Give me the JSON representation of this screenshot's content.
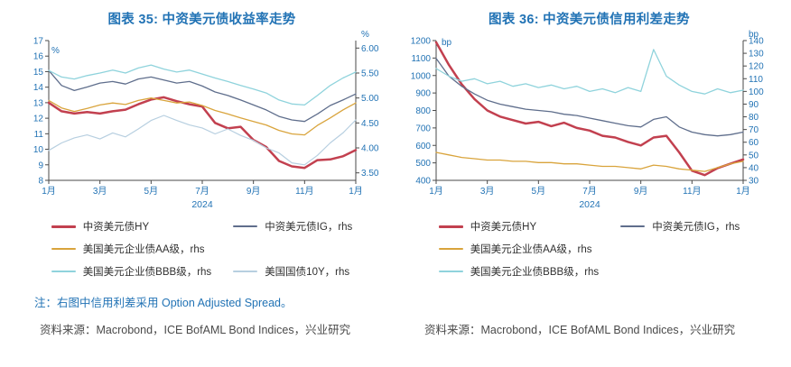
{
  "page": {
    "colors": {
      "accent": "#2273b5",
      "axis": "#4a4a4a",
      "legend_text": "#303030",
      "source_text": "#4a4a4a"
    },
    "note": "注：右图中信用利差采用 Option Adjusted Spread。",
    "source_left": "资料来源：Macrobond，ICE BofAML Bond Indices，兴业研究",
    "source_right": "资料来源：Macrobond，ICE BofAML Bond Indices，兴业研究"
  },
  "chart_data": [
    {
      "type": "line",
      "title": "图表 35: 中资美元债收益率走势",
      "x_year": "2024",
      "x_range": [
        0,
        12
      ],
      "x_ticks": [
        {
          "v": 0,
          "label": "1月"
        },
        {
          "v": 2,
          "label": "3月"
        },
        {
          "v": 4,
          "label": "5月"
        },
        {
          "v": 6,
          "label": "7月"
        },
        {
          "v": 8,
          "label": "9月"
        },
        {
          "v": 10,
          "label": "11月"
        },
        {
          "v": 12,
          "label": "1月"
        }
      ],
      "left_axis": {
        "unit": "%",
        "unit_pos": [
          3,
          14
        ],
        "range": [
          8,
          17
        ],
        "tick_values": [
          8,
          9,
          10,
          11,
          12,
          13,
          14,
          15,
          16,
          17
        ],
        "tick_labels": [
          "8",
          "9",
          "10",
          "11",
          "12",
          "13",
          "14",
          "15",
          "16",
          "17"
        ]
      },
      "right_axis": {
        "unit": "%",
        "unit_pos": [
          6,
          -4
        ],
        "range": [
          3.35,
          6.15
        ],
        "tick_values": [
          3.5,
          4.0,
          4.5,
          5.0,
          5.5,
          6.0
        ],
        "tick_labels": [
          "3.50",
          "4.00",
          "4.50",
          "5.00",
          "5.50",
          "6.00"
        ]
      },
      "x": [
        0,
        0.5,
        1,
        1.5,
        2,
        2.5,
        3,
        3.5,
        4,
        4.5,
        5,
        5.5,
        6,
        6.5,
        7,
        7.5,
        8,
        8.5,
        9,
        9.5,
        10,
        10.5,
        11,
        11.5,
        12
      ],
      "series": [
        {
          "id": "hy",
          "name": "中资美元债HY",
          "axis": "left",
          "color": "#c2404f",
          "width": 2.5,
          "values": [
            13.0,
            12.45,
            12.3,
            12.4,
            12.3,
            12.45,
            12.55,
            12.9,
            13.2,
            13.35,
            13.1,
            12.9,
            12.75,
            11.7,
            11.35,
            11.45,
            10.6,
            10.15,
            9.25,
            8.9,
            8.8,
            9.3,
            9.35,
            9.55,
            9.95
          ]
        },
        {
          "id": "ig",
          "name": "中资美元债IG，rhs",
          "axis": "right",
          "color": "#5f6e8c",
          "width": 1.3,
          "values": [
            5.55,
            5.25,
            5.15,
            5.22,
            5.3,
            5.33,
            5.28,
            5.38,
            5.42,
            5.36,
            5.3,
            5.33,
            5.24,
            5.12,
            5.05,
            4.96,
            4.86,
            4.76,
            4.63,
            4.56,
            4.53,
            4.68,
            4.85,
            4.96,
            5.08
          ]
        },
        {
          "id": "aa",
          "name": "美国美元企业债AA级，rhs",
          "axis": "right",
          "color": "#d9a43c",
          "width": 1.3,
          "values": [
            4.95,
            4.8,
            4.73,
            4.79,
            4.86,
            4.9,
            4.87,
            4.95,
            5.0,
            4.95,
            4.9,
            4.92,
            4.85,
            4.75,
            4.68,
            4.6,
            4.53,
            4.46,
            4.35,
            4.28,
            4.26,
            4.45,
            4.6,
            4.76,
            4.9
          ]
        },
        {
          "id": "bbb",
          "name": "美国美元企业债BBB级，rhs",
          "axis": "right",
          "color": "#8fd3dc",
          "width": 1.3,
          "values": [
            5.55,
            5.42,
            5.38,
            5.45,
            5.5,
            5.56,
            5.5,
            5.6,
            5.66,
            5.58,
            5.52,
            5.56,
            5.48,
            5.4,
            5.33,
            5.25,
            5.18,
            5.1,
            4.96,
            4.88,
            4.86,
            5.05,
            5.25,
            5.4,
            5.52
          ]
        },
        {
          "id": "ust10y",
          "name": "美国国债10Y，rhs",
          "axis": "right",
          "color": "#b7cfe0",
          "width": 1.2,
          "values": [
            3.95,
            4.1,
            4.2,
            4.26,
            4.18,
            4.3,
            4.22,
            4.38,
            4.55,
            4.65,
            4.55,
            4.46,
            4.4,
            4.28,
            4.38,
            4.25,
            4.15,
            4.0,
            3.9,
            3.7,
            3.66,
            3.85,
            4.1,
            4.3,
            4.56
          ]
        }
      ],
      "legend_rows": [
        [
          0,
          1
        ],
        [
          2
        ],
        [
          3,
          4
        ]
      ]
    },
    {
      "type": "line",
      "title": "图表 36: 中资美元债信用利差走势",
      "x_year": "2024",
      "x_range": [
        0,
        12
      ],
      "x_ticks": [
        {
          "v": 0,
          "label": "1月"
        },
        {
          "v": 2,
          "label": "3月"
        },
        {
          "v": 4,
          "label": "5月"
        },
        {
          "v": 6,
          "label": "7月"
        },
        {
          "v": 8,
          "label": "9月"
        },
        {
          "v": 10,
          "label": "11月"
        },
        {
          "v": 12,
          "label": "1月"
        }
      ],
      "left_axis": {
        "unit": "bp",
        "unit_pos": [
          6,
          5
        ],
        "range": [
          400,
          1200
        ],
        "tick_values": [
          400,
          500,
          600,
          700,
          800,
          900,
          1000,
          1100,
          1200
        ],
        "tick_labels": [
          "400",
          "500",
          "600",
          "700",
          "800",
          "900",
          "1000",
          "1100",
          "1200"
        ]
      },
      "right_axis": {
        "unit": "bp",
        "unit_pos": [
          6,
          -4
        ],
        "range": [
          30,
          140
        ],
        "tick_values": [
          30,
          40,
          50,
          60,
          70,
          80,
          90,
          100,
          110,
          120,
          130,
          140
        ],
        "tick_labels": [
          "30",
          "40",
          "50",
          "60",
          "70",
          "80",
          "90",
          "100",
          "110",
          "120",
          "130",
          "140"
        ]
      },
      "x": [
        0,
        0.5,
        1,
        1.5,
        2,
        2.5,
        3,
        3.5,
        4,
        4.5,
        5,
        5.5,
        6,
        6.5,
        7,
        7.5,
        8,
        8.5,
        9,
        9.5,
        10,
        10.5,
        11,
        11.5,
        12
      ],
      "series": [
        {
          "id": "hy",
          "name": "中资美元债HY",
          "axis": "left",
          "color": "#c2404f",
          "width": 2.5,
          "values": [
            1190,
            1060,
            950,
            865,
            800,
            765,
            745,
            725,
            735,
            710,
            730,
            700,
            685,
            655,
            645,
            620,
            600,
            645,
            655,
            560,
            455,
            430,
            470,
            495,
            520
          ]
        },
        {
          "id": "ig",
          "name": "中资美元债IG，rhs",
          "axis": "right",
          "color": "#5f6e8c",
          "width": 1.3,
          "values": [
            126,
            112,
            104,
            98,
            93,
            90,
            88,
            86,
            85,
            84,
            82,
            81,
            79,
            77,
            75,
            73,
            72,
            78,
            80,
            72,
            68,
            66,
            65,
            66,
            68
          ]
        },
        {
          "id": "aa",
          "name": "美国美元企业债AA级，rhs",
          "axis": "right",
          "color": "#d9a43c",
          "width": 1.3,
          "values": [
            52,
            50,
            48,
            47,
            46,
            46,
            45,
            45,
            44,
            44,
            43,
            43,
            42,
            41,
            41,
            40,
            39,
            42,
            41,
            39,
            38,
            37,
            40,
            43,
            45
          ]
        },
        {
          "id": "bbb",
          "name": "美国美元企业债BBB级，rhs",
          "axis": "right",
          "color": "#8fd3dc",
          "width": 1.3,
          "values": [
            118,
            112,
            108,
            110,
            106,
            108,
            104,
            106,
            103,
            105,
            102,
            104,
            100,
            102,
            99,
            103,
            100,
            133,
            112,
            105,
            100,
            98,
            102,
            99,
            101
          ]
        }
      ],
      "legend_rows": [
        [
          0,
          1
        ],
        [
          2
        ],
        [
          3
        ]
      ]
    }
  ]
}
